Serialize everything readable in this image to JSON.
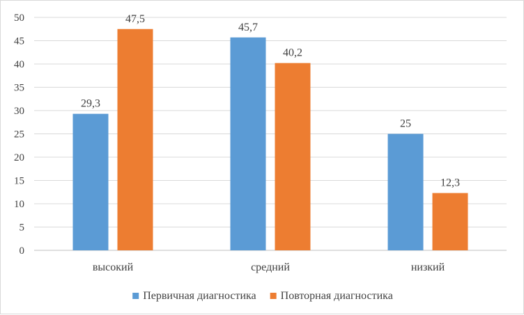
{
  "chart_data": {
    "type": "bar",
    "categories": [
      "высокий",
      "средний",
      "низкий"
    ],
    "series": [
      {
        "name": "Первичная диагностика",
        "values": [
          29.3,
          45.7,
          25
        ],
        "labels": [
          "29,3",
          "45,7",
          "25"
        ],
        "color": "#5b9bd5"
      },
      {
        "name": "Повторная диагностика",
        "values": [
          47.5,
          40.2,
          12.3
        ],
        "labels": [
          "47,5",
          "40,2",
          "12,3"
        ],
        "color": "#ed7d31"
      }
    ],
    "ylim": [
      0,
      50
    ],
    "yticks": [
      0,
      5,
      10,
      15,
      20,
      25,
      30,
      35,
      40,
      45,
      50
    ],
    "grid": true,
    "legend": "bottom",
    "title": "",
    "xlabel": "",
    "ylabel": ""
  }
}
